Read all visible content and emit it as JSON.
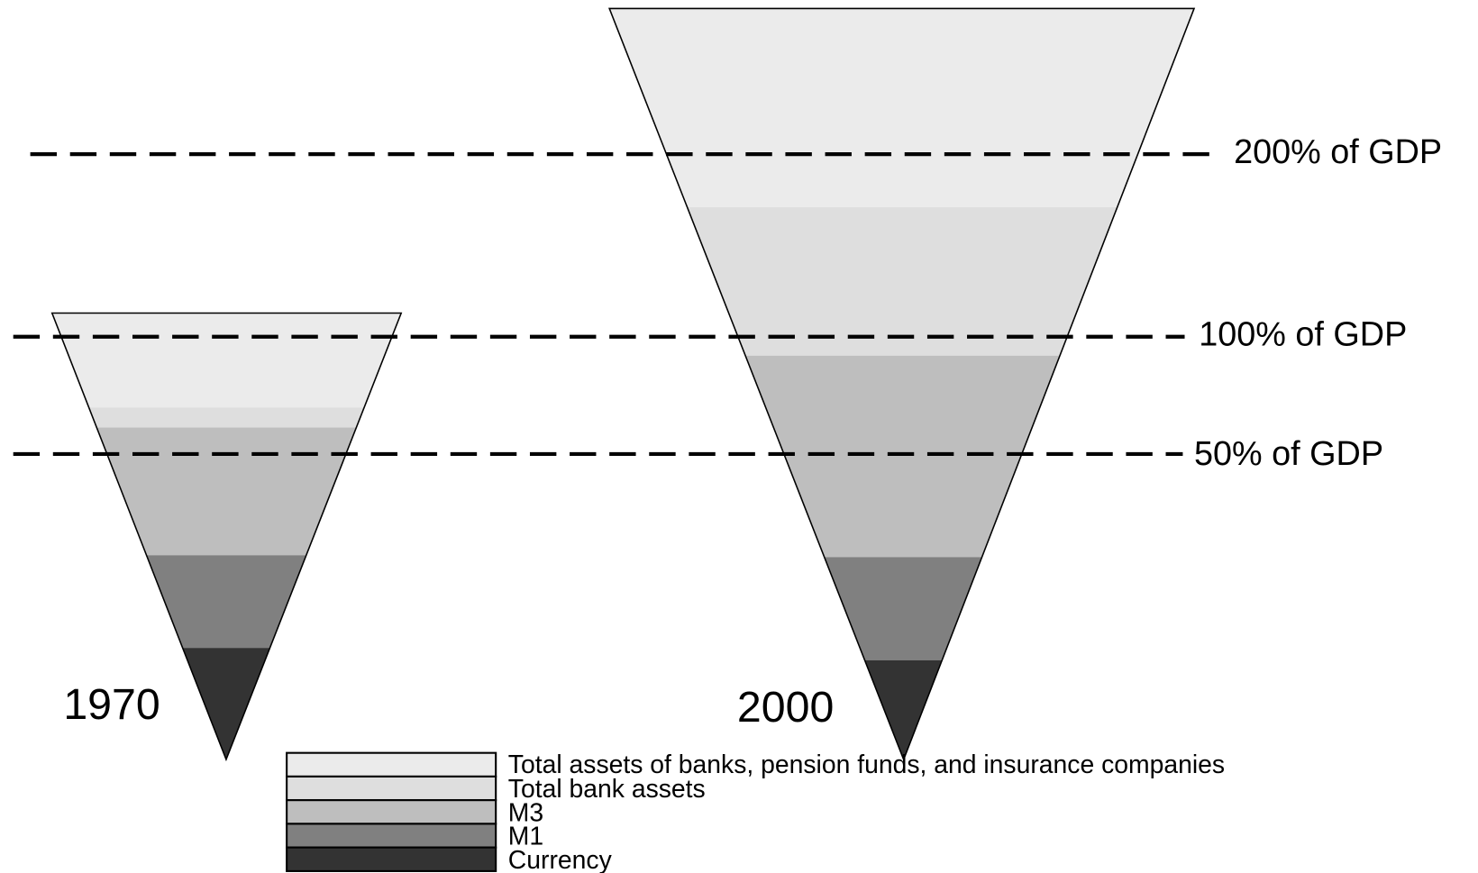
{
  "levels": [
    {
      "label": "200% of GDP"
    },
    {
      "label": "100% of GDP"
    },
    {
      "label": "50% of GDP"
    }
  ],
  "years": [
    {
      "label": "1970"
    },
    {
      "label": "2000"
    }
  ],
  "legend": [
    {
      "label": "Total assets of banks, pension funds, and insurance companies"
    },
    {
      "label": "Total bank assets"
    },
    {
      "label": "M3"
    },
    {
      "label": "M1"
    },
    {
      "label": "Currency"
    }
  ]
}
